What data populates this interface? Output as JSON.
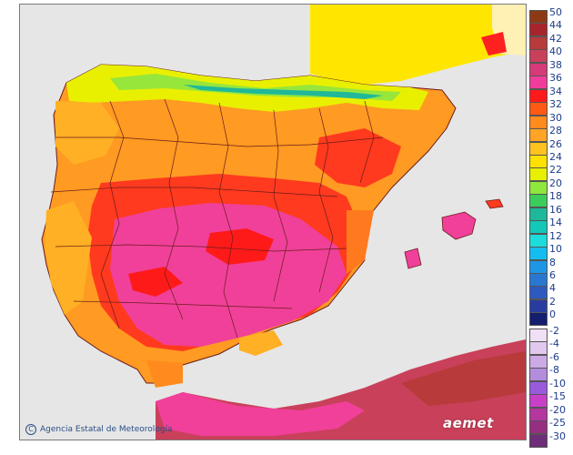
{
  "map": {
    "credit_text": "Agencia Estatal de Meteorología",
    "logo_text": "aemet"
  },
  "legend": {
    "warm": [
      {
        "label": "50",
        "color": "#8b3a14"
      },
      {
        "label": "44",
        "color": "#a8242c"
      },
      {
        "label": "42",
        "color": "#b83a3a"
      },
      {
        "label": "40",
        "color": "#c9405a"
      },
      {
        "label": "38",
        "color": "#d63a79"
      },
      {
        "label": "36",
        "color": "#f23c9c"
      },
      {
        "label": "34",
        "color": "#ff1a1a"
      },
      {
        "label": "32",
        "color": "#ff5a14"
      },
      {
        "label": "30",
        "color": "#ff8a1e"
      },
      {
        "label": "28",
        "color": "#ffa424"
      },
      {
        "label": "26",
        "color": "#ffc21e"
      },
      {
        "label": "24",
        "color": "#ffe100"
      },
      {
        "label": "22",
        "color": "#e6f000"
      },
      {
        "label": "20",
        "color": "#8fe63c"
      },
      {
        "label": "18",
        "color": "#3ccc5a"
      },
      {
        "label": "16",
        "color": "#1fb89a"
      },
      {
        "label": "14",
        "color": "#14c8b8"
      },
      {
        "label": "12",
        "color": "#1edcdc"
      },
      {
        "label": "10",
        "color": "#14bdf0"
      },
      {
        "label": "8",
        "color": "#1e96e6"
      },
      {
        "label": "6",
        "color": "#2878d2"
      },
      {
        "label": "4",
        "color": "#2d5abe"
      },
      {
        "label": "2",
        "color": "#283ca0"
      },
      {
        "label": "0",
        "color": "#141e6e"
      }
    ],
    "cold": [
      {
        "label": "-2",
        "color": "#efe0f5"
      },
      {
        "label": "-4",
        "color": "#e0c8ee"
      },
      {
        "label": "-6",
        "color": "#ccaae6"
      },
      {
        "label": "-8",
        "color": "#b48cdc"
      },
      {
        "label": "-10",
        "color": "#9a5adc"
      },
      {
        "label": "-15",
        "color": "#c840c8"
      },
      {
        "label": "-20",
        "color": "#b4369e"
      },
      {
        "label": "-25",
        "color": "#962e82"
      },
      {
        "label": "-30",
        "color": "#6e2e78"
      }
    ]
  }
}
